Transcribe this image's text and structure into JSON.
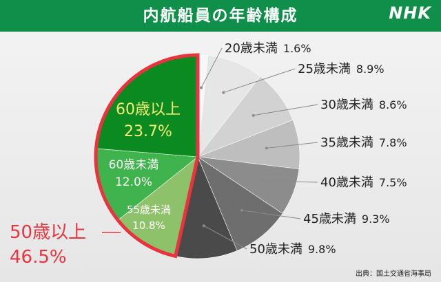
{
  "header": {
    "title": "内航船員の年齢構成",
    "logo": "NHK"
  },
  "source": "出典：国土交通省海事局",
  "chart_data": {
    "type": "pie",
    "title": "内航船員の年齢構成",
    "slices": [
      {
        "label": "20歳未満",
        "value": 1.6,
        "value_text": "1.6%",
        "color": "#f7f7f7"
      },
      {
        "label": "25歳未満",
        "value": 8.9,
        "value_text": "8.9%",
        "color": "#e6e6e6"
      },
      {
        "label": "30歳未満",
        "value": 8.6,
        "value_text": "8.6%",
        "color": "#d2d2d2"
      },
      {
        "label": "35歳未満",
        "value": 7.8,
        "value_text": "7.8%",
        "color": "#bebebe"
      },
      {
        "label": "40歳未満",
        "value": 7.5,
        "value_text": "7.5%",
        "color": "#8c8c8c"
      },
      {
        "label": "45歳未満",
        "value": 9.3,
        "value_text": "9.3%",
        "color": "#6e6e6e"
      },
      {
        "label": "50歳未満",
        "value": 9.8,
        "value_text": "9.8%",
        "color": "#4a4a4a"
      },
      {
        "label": "55歳未満",
        "value": 10.8,
        "value_text": "10.8%",
        "color": "#8ec26a"
      },
      {
        "label": "60歳未満",
        "value": 12.0,
        "value_text": "12.0%",
        "color": "#3fb34c"
      },
      {
        "label": "60歳以上",
        "value": 23.7,
        "value_text": "23.7%",
        "color": "#0b8a1f"
      }
    ],
    "highlight": {
      "label": "50歳以上",
      "value": 46.5,
      "value_text": "46.5%",
      "color": "#e8343f"
    }
  }
}
